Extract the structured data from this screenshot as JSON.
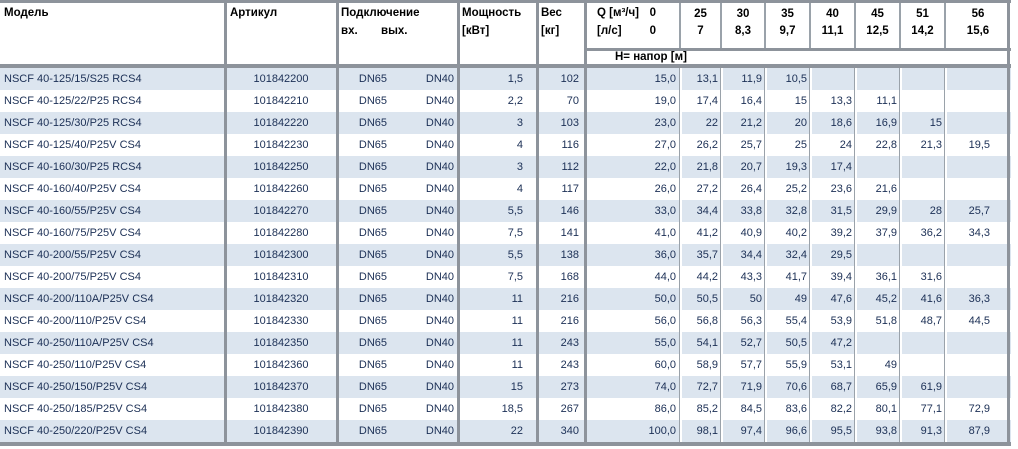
{
  "table": {
    "header": {
      "model": "Модель",
      "article": "Артикул",
      "connection": "Подключение",
      "inlet": "вх.",
      "outlet": "вых.",
      "power_line1": "Мощность",
      "power_line2": "[кВт]",
      "weight_line1": "Вес",
      "weight_line2": "[кг]",
      "flow_row1_label": "Q [м³/ч]",
      "flow_row1_zero": "0",
      "flow_row2_label": "[л/с]",
      "flow_row2_zero": "0",
      "head_row_label": "Н= напор [м]"
    },
    "flow_columns": [
      {
        "m3h": "25",
        "ls": "7"
      },
      {
        "m3h": "30",
        "ls": "8,3"
      },
      {
        "m3h": "35",
        "ls": "9,7"
      },
      {
        "m3h": "40",
        "ls": "11,1"
      },
      {
        "m3h": "45",
        "ls": "12,5"
      },
      {
        "m3h": "51",
        "ls": "14,2"
      },
      {
        "m3h": "56",
        "ls": "15,6"
      }
    ],
    "rows": [
      [
        "NSCF 40-125/15/S25 RCS4",
        "101842200",
        "DN65",
        "DN40",
        "1,5",
        "102",
        "15,0",
        "13,1",
        "11,9",
        "10,5",
        "",
        "",
        "",
        ""
      ],
      [
        "NSCF 40-125/22/P25 RCS4",
        "101842210",
        "DN65",
        "DN40",
        "2,2",
        "70",
        "19,0",
        "17,4",
        "16,4",
        "15",
        "13,3",
        "11,1",
        "",
        ""
      ],
      [
        "NSCF 40-125/30/P25 RCS4",
        "101842220",
        "DN65",
        "DN40",
        "3",
        "103",
        "23,0",
        "22",
        "21,2",
        "20",
        "18,6",
        "16,9",
        "15",
        ""
      ],
      [
        "NSCF 40-125/40/P25V CS4",
        "101842230",
        "DN65",
        "DN40",
        "4",
        "116",
        "27,0",
        "26,2",
        "25,7",
        "25",
        "24",
        "22,8",
        "21,3",
        "19,5"
      ],
      [
        "NSCF 40-160/30/P25 RCS4",
        "101842250",
        "DN65",
        "DN40",
        "3",
        "112",
        "22,0",
        "21,8",
        "20,7",
        "19,3",
        "17,4",
        "",
        "",
        ""
      ],
      [
        "NSCF 40-160/40/P25V CS4",
        "101842260",
        "DN65",
        "DN40",
        "4",
        "117",
        "26,0",
        "27,2",
        "26,4",
        "25,2",
        "23,6",
        "21,6",
        "",
        ""
      ],
      [
        "NSCF 40-160/55/P25V CS4",
        "101842270",
        "DN65",
        "DN40",
        "5,5",
        "146",
        "33,0",
        "34,4",
        "33,8",
        "32,8",
        "31,5",
        "29,9",
        "28",
        "25,7"
      ],
      [
        "NSCF 40-160/75/P25V CS4",
        "101842280",
        "DN65",
        "DN40",
        "7,5",
        "141",
        "41,0",
        "41,2",
        "40,9",
        "40,2",
        "39,2",
        "37,9",
        "36,2",
        "34,3"
      ],
      [
        "NSCF 40-200/55/P25V CS4",
        "101842300",
        "DN65",
        "DN40",
        "5,5",
        "138",
        "36,0",
        "35,7",
        "34,4",
        "32,4",
        "29,5",
        "",
        "",
        ""
      ],
      [
        "NSCF 40-200/75/P25V CS4",
        "101842310",
        "DN65",
        "DN40",
        "7,5",
        "168",
        "44,0",
        "44,2",
        "43,3",
        "41,7",
        "39,4",
        "36,1",
        "31,6",
        ""
      ],
      [
        "NSCF 40-200/110A/P25V CS4",
        "101842320",
        "DN65",
        "DN40",
        "11",
        "216",
        "50,0",
        "50,5",
        "50",
        "49",
        "47,6",
        "45,2",
        "41,6",
        "36,3"
      ],
      [
        "NSCF 40-200/110/P25V CS4",
        "101842330",
        "DN65",
        "DN40",
        "11",
        "216",
        "56,0",
        "56,8",
        "56,3",
        "55,4",
        "53,9",
        "51,8",
        "48,7",
        "44,5"
      ],
      [
        "NSCF 40-250/110A/P25V CS4",
        "101842350",
        "DN65",
        "DN40",
        "11",
        "243",
        "55,0",
        "54,1",
        "52,7",
        "50,5",
        "47,2",
        "",
        "",
        ""
      ],
      [
        "NSCF 40-250/110/P25V CS4",
        "101842360",
        "DN65",
        "DN40",
        "11",
        "243",
        "60,0",
        "58,9",
        "57,7",
        "55,9",
        "53,1",
        "49",
        "",
        ""
      ],
      [
        "NSCF 40-250/150/P25V CS4",
        "101842370",
        "DN65",
        "DN40",
        "15",
        "273",
        "74,0",
        "72,7",
        "71,9",
        "70,6",
        "68,7",
        "65,9",
        "61,9",
        ""
      ],
      [
        "NSCF 40-250/185/P25V CS4",
        "101842380",
        "DN65",
        "DN40",
        "18,5",
        "267",
        "86,0",
        "85,2",
        "84,5",
        "83,6",
        "82,2",
        "80,1",
        "77,1",
        "72,9"
      ],
      [
        "NSCF 40-250/220/P25V CS4",
        "101842390",
        "DN65",
        "DN40",
        "22",
        "340",
        "100,0",
        "98,1",
        "97,4",
        "96,6",
        "95,5",
        "93,8",
        "91,3",
        "87,9"
      ]
    ]
  },
  "colors": {
    "row_alt": "#dce5ef",
    "grid_thick": "#8d939b",
    "grid_thin": "#9aa2aa",
    "text": "#1b2f55"
  }
}
